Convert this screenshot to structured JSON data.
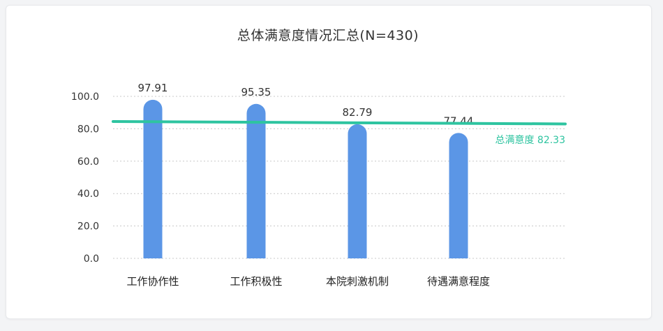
{
  "chart_data": {
    "type": "bar",
    "title": "总体满意度情况汇总(N=430)",
    "categories": [
      "工作协作性",
      "工作积极性",
      "本院刺激机制",
      "待遇满意程度"
    ],
    "values": [
      97.91,
      95.35,
      82.79,
      77.44
    ],
    "value_labels": [
      "97.91",
      "95.35",
      "82.79",
      "77.44"
    ],
    "ylim": [
      0,
      100
    ],
    "yticks": [
      0,
      20,
      40,
      60,
      80,
      100
    ],
    "ytick_labels": [
      "0.0",
      "20.0",
      "40.0",
      "60.0",
      "80.0",
      "100.0"
    ],
    "grid": "dotted-horizontal",
    "reference_line": {
      "label": "总满意度 82.33",
      "value": 82.33,
      "start_value": 84.5,
      "end_value": 83.0,
      "color": "#2ec4a0"
    },
    "colors": {
      "bar": "#5b96e6",
      "text": "#333333",
      "grid": "#c8c8c8"
    }
  }
}
